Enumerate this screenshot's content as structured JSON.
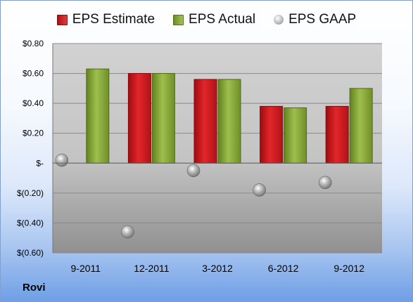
{
  "chart_data": {
    "type": "bar",
    "title": "",
    "xlabel": "",
    "ylabel": "",
    "categories": [
      "9-2011",
      "12-2011",
      "3-2012",
      "6-2012",
      "9-2012"
    ],
    "series": [
      {
        "name": "EPS Estimate",
        "kind": "bar",
        "color": "#c8191f",
        "values": [
          null,
          0.6,
          0.56,
          0.38,
          0.38
        ]
      },
      {
        "name": "EPS Actual",
        "kind": "bar",
        "color": "#8aaa3c",
        "values": [
          0.63,
          0.6,
          0.56,
          0.37,
          0.5
        ]
      },
      {
        "name": "EPS GAAP",
        "kind": "scatter",
        "color": "#a9a9a9",
        "values": [
          0.02,
          -0.46,
          -0.05,
          -0.18,
          -0.13
        ]
      }
    ],
    "ylim": [
      -0.6,
      0.8
    ],
    "yticks": [
      0.8,
      0.6,
      0.4,
      0.2,
      0.0,
      -0.2,
      -0.4,
      -0.6
    ],
    "ytick_labels": [
      "$0.80",
      "$0.60",
      "$0.40",
      "$0.20",
      "$-",
      "$(0.20)",
      "$(0.40)",
      "$(0.60)"
    ],
    "grid": true,
    "legend_position": "top"
  },
  "footer": {
    "company": "Rovi"
  }
}
